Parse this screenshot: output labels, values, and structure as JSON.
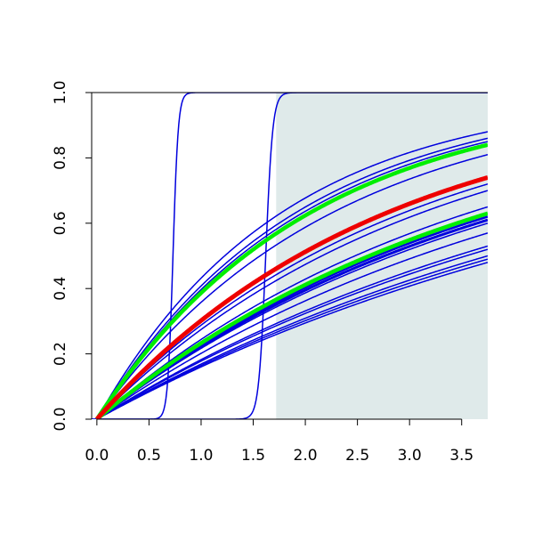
{
  "chart_data": {
    "type": "line",
    "title": "",
    "xlabel": "",
    "ylabel": "",
    "xlim": [
      -0.05,
      3.75
    ],
    "ylim": [
      0,
      1
    ],
    "x_ticks": [
      0.0,
      0.5,
      1.0,
      1.5,
      2.0,
      2.5,
      3.0,
      3.5
    ],
    "x_tick_labels": [
      "0.0",
      "0.5",
      "1.0",
      "1.5",
      "2.0",
      "2.5",
      "3.0",
      "3.5"
    ],
    "y_ticks": [
      0.0,
      0.2,
      0.4,
      0.6,
      0.8,
      1.0
    ],
    "y_tick_labels": [
      "0.0",
      "0.2",
      "0.4",
      "0.6",
      "0.8",
      "1.0"
    ],
    "grid": false,
    "legend": "none",
    "shaded_region": {
      "x_from": 1.72,
      "x_to": 3.75,
      "y_from": 0,
      "y_to": 1,
      "color": "#dfeaea"
    },
    "colors": {
      "blue": "#0000dd",
      "green": "#00ee00",
      "red": "#ee0000",
      "axes": "#000000"
    },
    "series": [
      {
        "kind": "sigmoid",
        "midpoint": 0.73,
        "steepness": 40,
        "color": "#0000dd",
        "width": 1.5
      },
      {
        "kind": "sigmoid",
        "midpoint": 1.62,
        "steepness": 30,
        "color": "#0000dd",
        "width": 1.5
      },
      {
        "kind": "saturating",
        "end_value": 0.88,
        "color": "#0000dd",
        "width": 1.5
      },
      {
        "kind": "saturating",
        "end_value": 0.86,
        "color": "#0000dd",
        "width": 1.5
      },
      {
        "kind": "saturating",
        "end_value": 0.85,
        "color": "#0000dd",
        "width": 1.5
      },
      {
        "kind": "saturating",
        "end_value": 0.81,
        "color": "#0000dd",
        "width": 1.5
      },
      {
        "kind": "saturating",
        "end_value": 0.72,
        "color": "#0000dd",
        "width": 1.5
      },
      {
        "kind": "saturating",
        "end_value": 0.7,
        "color": "#0000dd",
        "width": 1.5
      },
      {
        "kind": "saturating",
        "end_value": 0.65,
        "color": "#0000dd",
        "width": 1.5
      },
      {
        "kind": "saturating",
        "end_value": 0.62,
        "color": "#0000dd",
        "width": 2.5
      },
      {
        "kind": "saturating",
        "end_value": 0.61,
        "color": "#0000dd",
        "width": 3
      },
      {
        "kind": "saturating",
        "end_value": 0.6,
        "color": "#0000dd",
        "width": 1.5
      },
      {
        "kind": "saturating",
        "end_value": 0.57,
        "color": "#0000dd",
        "width": 1.5
      },
      {
        "kind": "saturating",
        "end_value": 0.53,
        "color": "#0000dd",
        "width": 1.5
      },
      {
        "kind": "saturating",
        "end_value": 0.52,
        "color": "#0000dd",
        "width": 1.5
      },
      {
        "kind": "saturating",
        "end_value": 0.5,
        "color": "#0000dd",
        "width": 1.5
      },
      {
        "kind": "saturating",
        "end_value": 0.49,
        "color": "#0000dd",
        "width": 1.5
      },
      {
        "kind": "saturating",
        "end_value": 0.48,
        "color": "#0000dd",
        "width": 1.5
      },
      {
        "kind": "saturating",
        "end_value": 0.84,
        "color": "#00ee00",
        "width": 4.5
      },
      {
        "kind": "saturating",
        "end_value": 0.63,
        "color": "#00ee00",
        "width": 4.5
      },
      {
        "kind": "saturating",
        "end_value": 0.74,
        "color": "#ee0000",
        "width": 5
      }
    ]
  }
}
